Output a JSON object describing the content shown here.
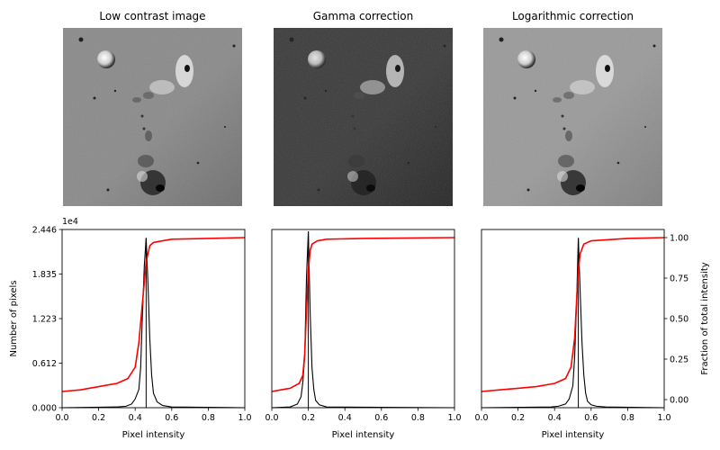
{
  "figure": {
    "image_titles": [
      "Low contrast image",
      "Gamma correction",
      "Logarithmic correction"
    ]
  },
  "chart_data": [
    {
      "type": "image",
      "title": "Low contrast image",
      "tone": "mid-gray, low contrast"
    },
    {
      "type": "image",
      "title": "Gamma correction",
      "tone": "darker, gamma applied"
    },
    {
      "type": "image",
      "title": "Logarithmic correction",
      "tone": "lighter, log applied"
    },
    {
      "type": "line",
      "title": "",
      "xlabel": "Pixel intensity",
      "ylabel": "Number of pixels",
      "y_scale_label": "1e4",
      "xlim": [
        0,
        1
      ],
      "ylim": [
        0,
        2.446
      ],
      "xticks": [
        "0.0",
        "0.2",
        "0.4",
        "0.6",
        "0.8",
        "1.0"
      ],
      "yticks": [
        "0.000",
        "0.612",
        "1.223",
        "1.835",
        "2.446"
      ],
      "grid": false,
      "histogram_peak_x": 0.46,
      "histogram_peak_y": 2.33,
      "series": [
        {
          "kind": "histogram",
          "color": "#000000",
          "x": [
            0.3,
            0.35,
            0.38,
            0.4,
            0.42,
            0.43,
            0.44,
            0.45,
            0.46,
            0.47,
            0.48,
            0.49,
            0.5,
            0.52,
            0.55,
            0.6
          ],
          "y": [
            0.01,
            0.02,
            0.05,
            0.12,
            0.25,
            0.55,
            1.3,
            1.95,
            2.33,
            1.7,
            0.95,
            0.45,
            0.2,
            0.08,
            0.03,
            0.01
          ]
        },
        {
          "kind": "cdf",
          "color": "#ff0000",
          "axis": "right",
          "x": [
            0.0,
            0.1,
            0.2,
            0.3,
            0.36,
            0.4,
            0.42,
            0.44,
            0.46,
            0.48,
            0.5,
            0.55,
            0.6,
            0.8,
            1.0
          ],
          "y": [
            0.05,
            0.06,
            0.08,
            0.1,
            0.13,
            0.2,
            0.35,
            0.6,
            0.85,
            0.95,
            0.97,
            0.98,
            0.99,
            0.995,
            1.0
          ]
        }
      ]
    },
    {
      "type": "line",
      "title": "",
      "xlabel": "Pixel intensity",
      "ylabel": "",
      "xlim": [
        0,
        1
      ],
      "ylim": [
        0,
        2.446
      ],
      "xticks": [
        "0.0",
        "0.2",
        "0.4",
        "0.6",
        "0.8",
        "1.0"
      ],
      "grid": false,
      "histogram_peak_x": 0.2,
      "histogram_peak_y": 2.42,
      "series": [
        {
          "kind": "histogram",
          "color": "#000000",
          "x": [
            0.1,
            0.14,
            0.16,
            0.17,
            0.18,
            0.19,
            0.2,
            0.21,
            0.22,
            0.23,
            0.24,
            0.26,
            0.3
          ],
          "y": [
            0.01,
            0.05,
            0.15,
            0.35,
            0.7,
            1.8,
            2.42,
            1.3,
            0.55,
            0.25,
            0.1,
            0.04,
            0.01
          ]
        },
        {
          "kind": "cdf",
          "color": "#ff0000",
          "axis": "right",
          "x": [
            0.0,
            0.05,
            0.1,
            0.15,
            0.17,
            0.18,
            0.19,
            0.2,
            0.21,
            0.22,
            0.25,
            0.3,
            0.5,
            1.0
          ],
          "y": [
            0.05,
            0.06,
            0.07,
            0.1,
            0.15,
            0.28,
            0.55,
            0.8,
            0.92,
            0.96,
            0.98,
            0.99,
            0.995,
            1.0
          ]
        }
      ]
    },
    {
      "type": "line",
      "title": "",
      "xlabel": "Pixel intensity",
      "ylabel_right": "Fraction of total intensity",
      "xlim": [
        0,
        1
      ],
      "ylim": [
        0,
        2.446
      ],
      "y2lim": [
        -0.05,
        1.05
      ],
      "xticks": [
        "0.0",
        "0.2",
        "0.4",
        "0.6",
        "0.8",
        "1.0"
      ],
      "y2ticks": [
        "0.00",
        "0.25",
        "0.50",
        "0.75",
        "1.00"
      ],
      "grid": false,
      "histogram_peak_x": 0.53,
      "histogram_peak_y": 2.33,
      "series": [
        {
          "kind": "histogram",
          "color": "#000000",
          "x": [
            0.38,
            0.42,
            0.46,
            0.48,
            0.5,
            0.51,
            0.52,
            0.53,
            0.54,
            0.55,
            0.56,
            0.57,
            0.58,
            0.6,
            0.63,
            0.68
          ],
          "y": [
            0.01,
            0.02,
            0.05,
            0.12,
            0.3,
            0.7,
            1.4,
            2.33,
            1.6,
            0.9,
            0.45,
            0.2,
            0.09,
            0.04,
            0.02,
            0.01
          ]
        },
        {
          "kind": "cdf",
          "color": "#ff0000",
          "axis": "right",
          "x": [
            0.0,
            0.1,
            0.2,
            0.3,
            0.4,
            0.46,
            0.49,
            0.51,
            0.52,
            0.53,
            0.54,
            0.56,
            0.6,
            0.8,
            1.0
          ],
          "y": [
            0.05,
            0.06,
            0.07,
            0.08,
            0.1,
            0.13,
            0.2,
            0.38,
            0.6,
            0.8,
            0.9,
            0.96,
            0.98,
            0.995,
            1.0
          ]
        }
      ]
    }
  ]
}
